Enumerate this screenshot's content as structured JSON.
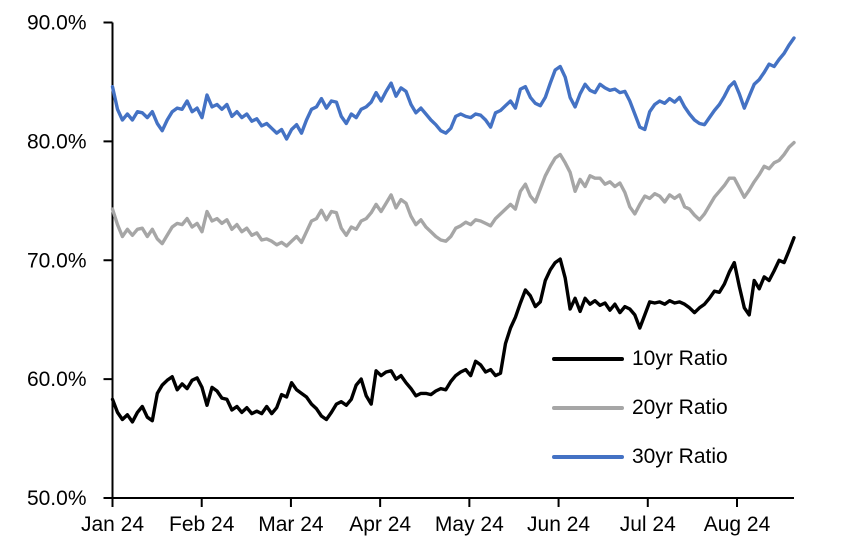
{
  "chart_data": {
    "type": "line",
    "title": "",
    "xlabel": "",
    "ylabel": "",
    "background": "#FFFFFF",
    "axis_color": "#000000",
    "grid": false,
    "ylim": [
      50,
      90
    ],
    "y_tick_values": [
      50,
      60,
      70,
      80,
      90
    ],
    "y_tick_labels": [
      "50.0%",
      "60.0%",
      "70.0%",
      "80.0%",
      "90.0%"
    ],
    "x_tick_labels": [
      "Jan 24",
      "Feb 24",
      "Mar 24",
      "Apr 24",
      "May 24",
      "Jun 24",
      "Jul 24",
      "Aug 24"
    ],
    "legend": {
      "position": "inside lower right",
      "entries": [
        "10yr Ratio",
        "20yr Ratio",
        "30yr Ratio"
      ]
    },
    "series": [
      {
        "name": "10yr Ratio",
        "color": "#000000",
        "values": [
          58.3,
          57.2,
          56.6,
          57.0,
          56.4,
          57.2,
          57.7,
          56.8,
          56.5,
          58.8,
          59.5,
          59.9,
          60.2,
          59.1,
          59.6,
          59.2,
          59.9,
          60.1,
          59.3,
          57.8,
          59.3,
          59.0,
          58.4,
          58.3,
          57.4,
          57.7,
          57.2,
          57.6,
          57.1,
          57.3,
          57.1,
          57.7,
          57.1,
          57.6,
          58.7,
          58.5,
          59.7,
          59.1,
          58.8,
          58.5,
          57.9,
          57.5,
          56.9,
          56.6,
          57.2,
          57.9,
          58.1,
          57.8,
          58.3,
          59.5,
          60.0,
          58.6,
          57.9,
          60.7,
          60.3,
          60.6,
          60.7,
          60.0,
          60.3,
          59.7,
          59.2,
          58.6,
          58.8,
          58.8,
          58.7,
          59.0,
          59.2,
          59.1,
          59.8,
          60.3,
          60.6,
          60.8,
          60.3,
          61.5,
          61.2,
          60.6,
          60.8,
          60.3,
          60.5,
          63.0,
          64.3,
          65.2,
          66.4,
          67.5,
          67.0,
          66.1,
          66.5,
          68.3,
          69.2,
          69.8,
          70.1,
          68.5,
          65.9,
          66.8,
          65.7,
          66.8,
          66.3,
          66.6,
          66.2,
          66.4,
          65.8,
          66.3,
          65.6,
          66.1,
          65.9,
          65.4,
          64.3,
          65.4,
          66.5,
          66.4,
          66.5,
          66.3,
          66.6,
          66.4,
          66.5,
          66.3,
          66.0,
          65.6,
          66.0,
          66.3,
          66.8,
          67.4,
          67.3,
          68.0,
          69.0,
          69.8,
          67.8,
          66.0,
          65.4,
          68.3,
          67.6,
          68.6,
          68.3,
          69.1,
          70.0,
          69.8,
          70.8,
          71.9
        ]
      },
      {
        "name": "20yr Ratio",
        "color": "#A6A6A6",
        "values": [
          74.3,
          73.0,
          72.0,
          72.6,
          72.1,
          72.6,
          72.7,
          72.0,
          72.6,
          71.8,
          71.4,
          72.1,
          72.8,
          73.1,
          73.0,
          73.5,
          72.8,
          73.1,
          72.4,
          74.1,
          73.3,
          73.5,
          73.1,
          73.4,
          72.6,
          73.0,
          72.4,
          72.7,
          72.1,
          72.3,
          71.7,
          71.8,
          71.6,
          71.3,
          71.5,
          71.2,
          71.6,
          72.0,
          71.5,
          72.4,
          73.3,
          73.5,
          74.2,
          73.4,
          74.1,
          74.0,
          72.7,
          72.1,
          72.8,
          72.6,
          73.3,
          73.5,
          74.0,
          74.7,
          74.1,
          74.8,
          75.5,
          74.4,
          75.1,
          74.8,
          73.7,
          73.0,
          73.4,
          72.8,
          72.4,
          72.0,
          71.7,
          71.6,
          72.0,
          72.7,
          72.9,
          73.2,
          73.0,
          73.4,
          73.3,
          73.1,
          72.9,
          73.5,
          73.9,
          74.3,
          74.7,
          74.3,
          75.8,
          76.4,
          75.4,
          74.9,
          76.0,
          77.1,
          77.9,
          78.6,
          78.9,
          78.2,
          77.4,
          75.8,
          76.8,
          76.2,
          77.1,
          76.9,
          76.9,
          76.4,
          76.6,
          76.2,
          76.5,
          75.7,
          74.5,
          73.9,
          74.7,
          75.4,
          75.2,
          75.6,
          75.4,
          74.9,
          75.5,
          75.2,
          75.5,
          74.5,
          74.3,
          73.8,
          73.4,
          73.9,
          74.6,
          75.3,
          75.8,
          76.3,
          76.9,
          76.9,
          76.1,
          75.3,
          75.9,
          76.6,
          77.2,
          77.9,
          77.7,
          78.2,
          78.4,
          78.9,
          79.5,
          79.9
        ]
      },
      {
        "name": "30yr Ratio",
        "color": "#4472C4",
        "values": [
          84.6,
          82.7,
          81.8,
          82.3,
          81.8,
          82.5,
          82.4,
          82.0,
          82.5,
          81.5,
          80.9,
          81.8,
          82.5,
          82.8,
          82.7,
          83.4,
          82.5,
          82.8,
          82.0,
          83.9,
          82.9,
          83.1,
          82.7,
          83.1,
          82.1,
          82.5,
          82.0,
          82.3,
          81.7,
          81.9,
          81.3,
          81.5,
          81.1,
          80.7,
          81.0,
          80.2,
          81.0,
          81.4,
          80.7,
          81.8,
          82.7,
          82.9,
          83.6,
          82.8,
          83.4,
          83.3,
          82.1,
          81.5,
          82.3,
          82.0,
          82.7,
          82.9,
          83.3,
          84.1,
          83.4,
          84.2,
          84.9,
          83.8,
          84.5,
          84.2,
          83.1,
          82.4,
          82.8,
          82.3,
          81.8,
          81.4,
          80.9,
          80.7,
          81.1,
          82.1,
          82.3,
          82.1,
          82.0,
          82.3,
          82.2,
          81.8,
          81.2,
          82.4,
          82.6,
          83.0,
          83.4,
          82.8,
          84.4,
          84.6,
          83.7,
          83.2,
          83.0,
          83.7,
          84.9,
          86.0,
          86.3,
          85.4,
          83.7,
          82.9,
          84.0,
          84.8,
          84.3,
          84.1,
          84.8,
          84.5,
          84.3,
          84.4,
          84.1,
          84.2,
          83.4,
          82.3,
          81.2,
          81.0,
          82.5,
          83.1,
          83.4,
          83.2,
          83.6,
          83.3,
          83.7,
          82.9,
          82.3,
          81.8,
          81.5,
          81.4,
          82.0,
          82.6,
          83.1,
          83.8,
          84.6,
          85.0,
          84.0,
          82.8,
          83.8,
          84.8,
          85.2,
          85.8,
          86.5,
          86.3,
          86.9,
          87.4,
          88.1,
          88.7
        ]
      }
    ]
  }
}
